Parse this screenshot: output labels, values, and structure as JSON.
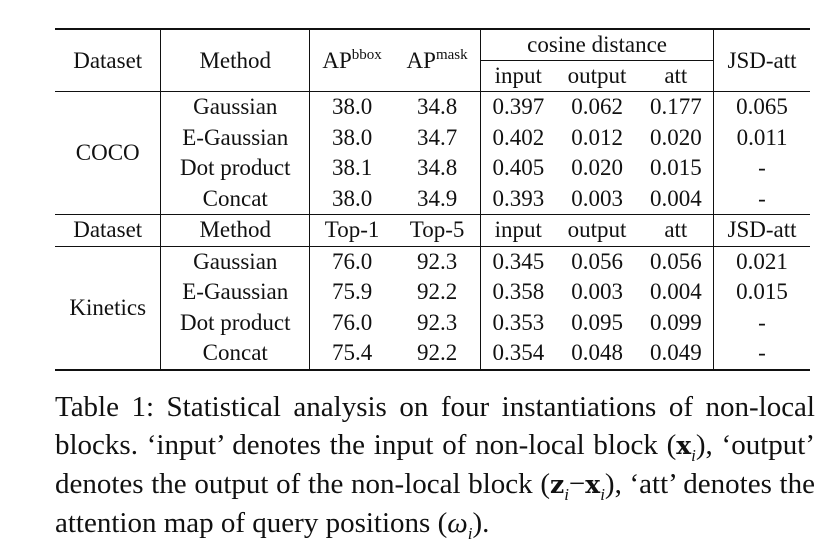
{
  "table": {
    "header1": {
      "dataset": "Dataset",
      "method": "Method",
      "ap_bbox_base": "AP",
      "ap_bbox_sup": "bbox",
      "ap_mask_base": "AP",
      "ap_mask_sup": "mask",
      "cosine": "cosine distance",
      "cos_input": "input",
      "cos_output": "output",
      "cos_att": "att",
      "jsd": "JSD-att"
    },
    "coco": {
      "dataset": "COCO",
      "rows": [
        {
          "method": "Gaussian",
          "m1": "38.0",
          "m2": "34.8",
          "input": "0.397",
          "output": "0.062",
          "att": "0.177",
          "jsd": "0.065"
        },
        {
          "method": "E-Gaussian",
          "m1": "38.0",
          "m2": "34.7",
          "input": "0.402",
          "output": "0.012",
          "att": "0.020",
          "jsd": "0.011"
        },
        {
          "method": "Dot product",
          "m1": "38.1",
          "m2": "34.8",
          "input": "0.405",
          "output": "0.020",
          "att": "0.015",
          "jsd": "-"
        },
        {
          "method": "Concat",
          "m1": "38.0",
          "m2": "34.9",
          "input": "0.393",
          "output": "0.003",
          "att": "0.004",
          "jsd": "-"
        }
      ]
    },
    "header2": {
      "dataset": "Dataset",
      "method": "Method",
      "top1": "Top-1",
      "top5": "Top-5",
      "cos_input": "input",
      "cos_output": "output",
      "cos_att": "att",
      "jsd": "JSD-att"
    },
    "kinetics": {
      "dataset": "Kinetics",
      "rows": [
        {
          "method": "Gaussian",
          "m1": "76.0",
          "m2": "92.3",
          "input": "0.345",
          "output": "0.056",
          "att": "0.056",
          "jsd": "0.021"
        },
        {
          "method": "E-Gaussian",
          "m1": "75.9",
          "m2": "92.2",
          "input": "0.358",
          "output": "0.003",
          "att": "0.004",
          "jsd": "0.015"
        },
        {
          "method": "Dot product",
          "m1": "76.0",
          "m2": "92.3",
          "input": "0.353",
          "output": "0.095",
          "att": "0.099",
          "jsd": "-"
        },
        {
          "method": "Concat",
          "m1": "75.4",
          "m2": "92.2",
          "input": "0.354",
          "output": "0.048",
          "att": "0.049",
          "jsd": "-"
        }
      ]
    }
  },
  "caption": {
    "t1": "Table 1: Statistical analysis on four instantiations of non-local blocks. ‘input’ denotes the input of non-local block (",
    "x1": "x",
    "i1": "i",
    "t2": "), ‘output’ denotes the output of the non-local block (",
    "z2": "z",
    "i2": "i",
    "minus": "−",
    "x3": "x",
    "i3": "i",
    "t3": "), ‘att’ denotes the attention map of query positions (",
    "omega": "ω",
    "i4": "i",
    "t4": ")."
  }
}
